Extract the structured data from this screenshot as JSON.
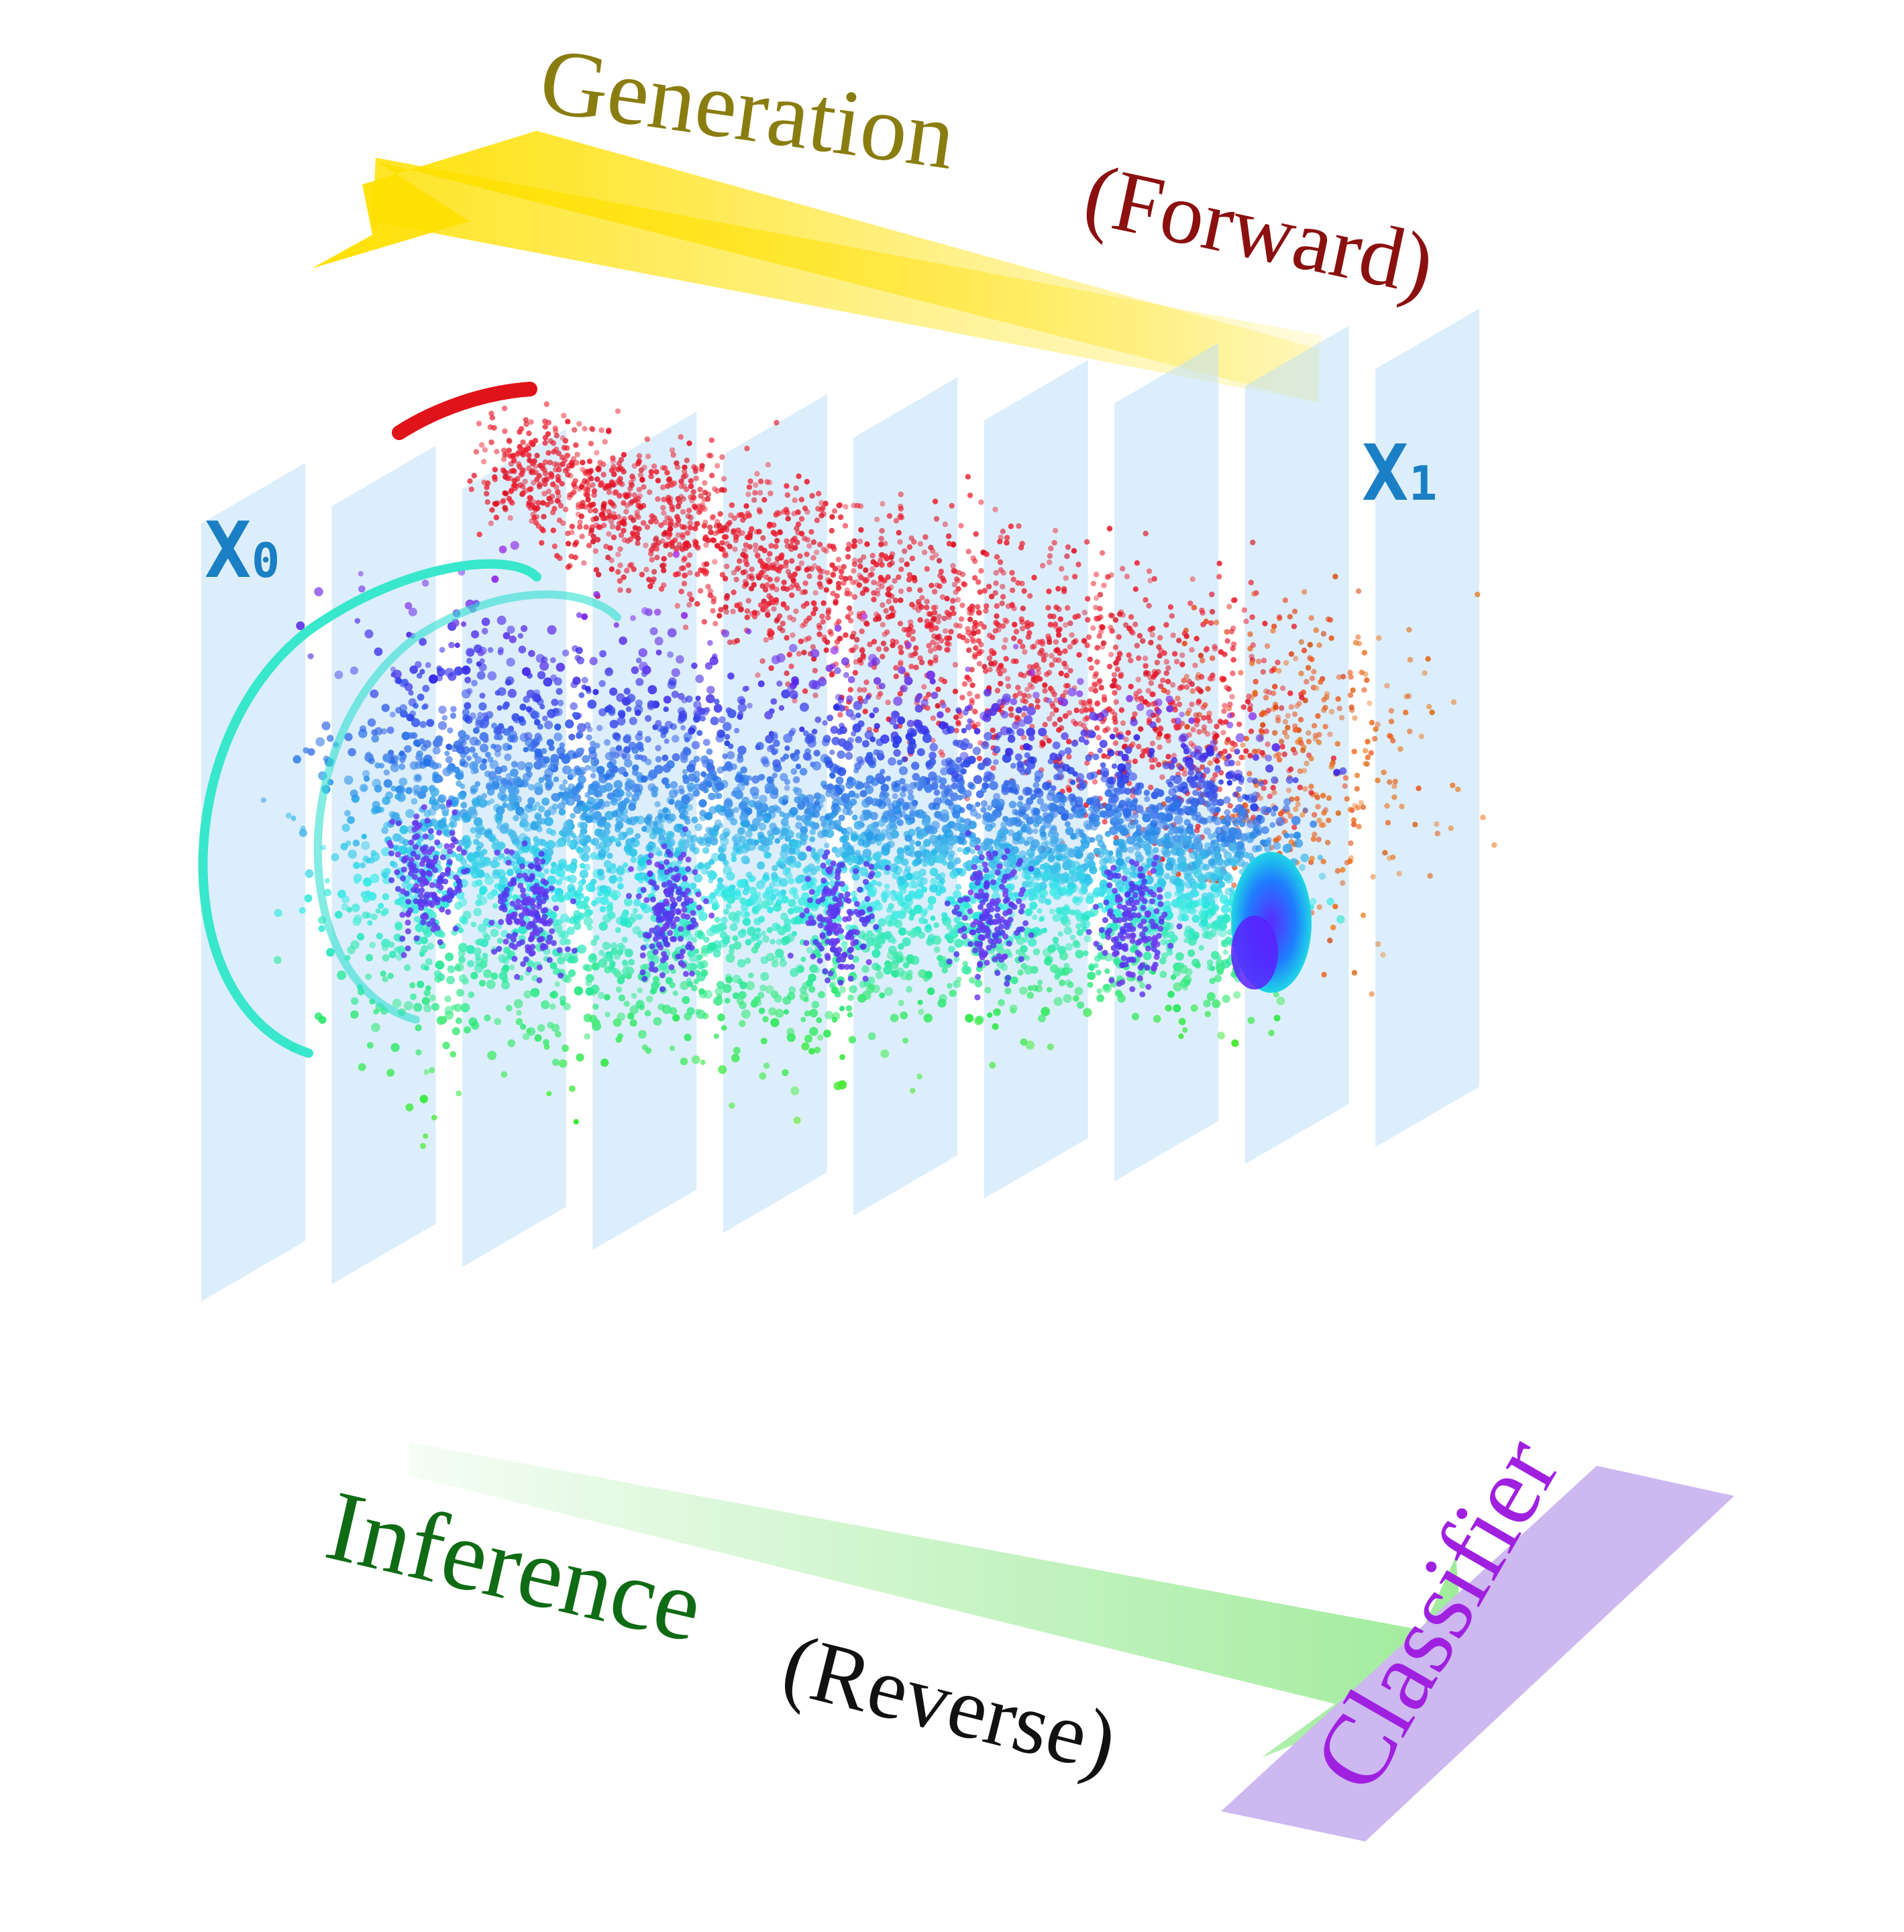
{
  "labels": {
    "generation": "Generation",
    "forward": "(Forward)",
    "inference": "Inference",
    "reverse": "(Reverse)",
    "classifier": "Classifier",
    "x0": "X",
    "x0_sub": "0",
    "x1": "X",
    "x1_sub": "1"
  },
  "colors": {
    "generation_text": "#8a7d10",
    "forward_text": "#8b1010",
    "inference_text": "#0f6b14",
    "reverse_text": "#111111",
    "classifier_text": "#a020e0",
    "classifier_band": "#cdb8f0",
    "x_label": "#1a7fc4",
    "plane_fill": "#bfe0f7",
    "gen_arrow": "#ffe000",
    "inf_arrow": "#8fe88a"
  },
  "diagram": {
    "plane_count": 10,
    "trajectories": {
      "upper_trajectory_color": "red",
      "lower_trajectory_color": "cyan-to-violet"
    }
  }
}
